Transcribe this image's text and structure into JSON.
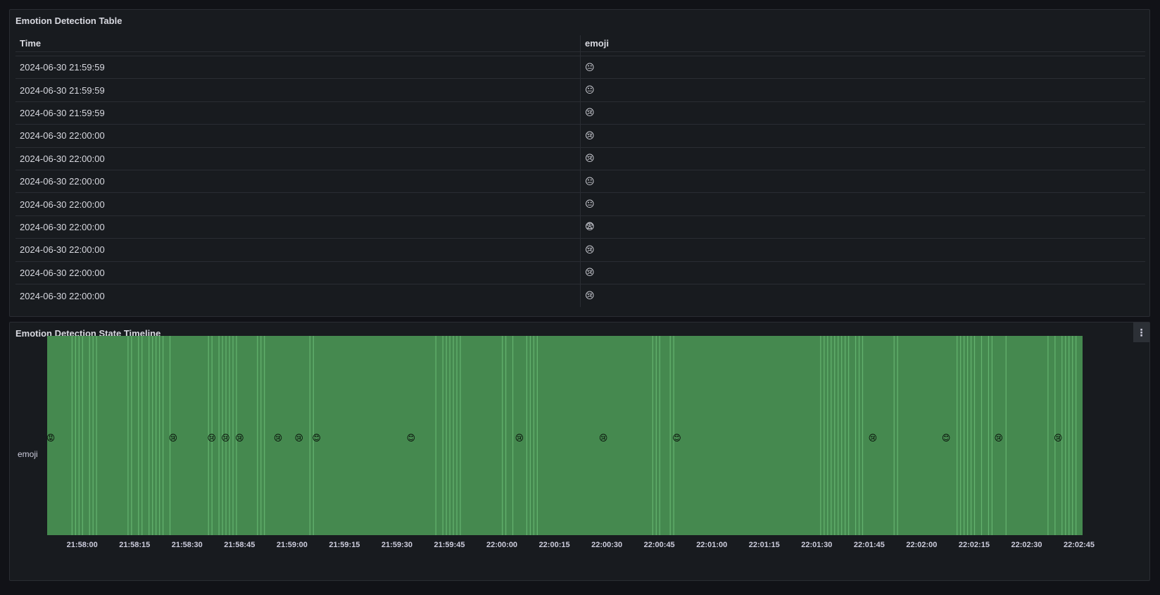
{
  "table_panel": {
    "title": "Emotion Detection Table",
    "columns": [
      "Time",
      "emoji"
    ],
    "rows": [
      {
        "time": "2024-06-30 21:59:59",
        "emoji": "😐"
      },
      {
        "time": "2024-06-30 21:59:59",
        "emoji": "😐"
      },
      {
        "time": "2024-06-30 21:59:59",
        "emoji": "😢"
      },
      {
        "time": "2024-06-30 22:00:00",
        "emoji": "😢"
      },
      {
        "time": "2024-06-30 22:00:00",
        "emoji": "😢"
      },
      {
        "time": "2024-06-30 22:00:00",
        "emoji": "😐"
      },
      {
        "time": "2024-06-30 22:00:00",
        "emoji": "😐"
      },
      {
        "time": "2024-06-30 22:00:00",
        "emoji": "😨"
      },
      {
        "time": "2024-06-30 22:00:00",
        "emoji": "😢"
      },
      {
        "time": "2024-06-30 22:00:00",
        "emoji": "😢"
      },
      {
        "time": "2024-06-30 22:00:00",
        "emoji": "😢"
      }
    ]
  },
  "timeline_panel": {
    "title": "Emotion Detection State Timeline",
    "menu_icon": "⋮",
    "row_label": "emoji",
    "state_color": "#45894f",
    "boundary_color": "#6fc27a",
    "x_ticks": [
      "21:58:00",
      "21:58:15",
      "21:58:30",
      "21:58:45",
      "21:59:00",
      "21:59:15",
      "21:59:30",
      "21:59:45",
      "22:00:00",
      "22:00:15",
      "22:00:30",
      "22:00:45",
      "22:01:00",
      "22:01:15",
      "22:01:30",
      "22:01:45",
      "22:02:00",
      "22:02:15",
      "22:02:30",
      "22:02:45"
    ],
    "markers": [
      {
        "time": "21:57:51",
        "emoji": "😡"
      },
      {
        "time": "21:58:26",
        "emoji": "😢"
      },
      {
        "time": "21:58:37",
        "emoji": "😢"
      },
      {
        "time": "21:58:41",
        "emoji": "😢"
      },
      {
        "time": "21:58:45",
        "emoji": "😢"
      },
      {
        "time": "21:58:56",
        "emoji": "😢"
      },
      {
        "time": "21:59:02",
        "emoji": "😢"
      },
      {
        "time": "21:59:07",
        "emoji": "😊"
      },
      {
        "time": "21:59:34",
        "emoji": "😊"
      },
      {
        "time": "22:00:05",
        "emoji": "😢"
      },
      {
        "time": "22:00:29",
        "emoji": "😢"
      },
      {
        "time": "22:00:50",
        "emoji": "😊"
      },
      {
        "time": "22:01:46",
        "emoji": "😢"
      },
      {
        "time": "22:02:07",
        "emoji": "😊"
      },
      {
        "time": "22:02:22",
        "emoji": "😢"
      },
      {
        "time": "22:02:39",
        "emoji": "😢"
      }
    ],
    "boundaries": [
      "21:57:57",
      "21:57:58",
      "21:57:59",
      "21:58:00",
      "21:58:02",
      "21:58:03",
      "21:58:04",
      "21:58:13",
      "21:58:14",
      "21:58:16",
      "21:58:17",
      "21:58:19",
      "21:58:20",
      "21:58:21",
      "21:58:22",
      "21:58:23",
      "21:58:25",
      "21:58:36",
      "21:58:37",
      "21:58:39",
      "21:58:40",
      "21:58:41",
      "21:58:42",
      "21:58:43",
      "21:58:44",
      "21:58:50",
      "21:58:51",
      "21:58:52",
      "21:59:05",
      "21:59:06",
      "21:59:41",
      "21:59:43",
      "21:59:44",
      "21:59:45",
      "21:59:46",
      "21:59:47",
      "21:59:48",
      "22:00:00",
      "22:00:01",
      "22:00:03",
      "22:00:07",
      "22:00:08",
      "22:00:09",
      "22:00:10",
      "22:00:43",
      "22:00:44",
      "22:00:45",
      "22:00:48",
      "22:00:49",
      "22:01:31",
      "22:01:32",
      "22:01:33",
      "22:01:34",
      "22:01:35",
      "22:01:36",
      "22:01:37",
      "22:01:38",
      "22:01:39",
      "22:01:41",
      "22:01:42",
      "22:01:43",
      "22:01:52",
      "22:01:53",
      "22:02:10",
      "22:02:11",
      "22:02:12",
      "22:02:13",
      "22:02:14",
      "22:02:15",
      "22:02:17",
      "22:02:19",
      "22:02:20",
      "22:02:24",
      "22:02:36",
      "22:02:38",
      "22:02:40",
      "22:02:41",
      "22:02:42",
      "22:02:43",
      "22:02:44"
    ]
  }
}
